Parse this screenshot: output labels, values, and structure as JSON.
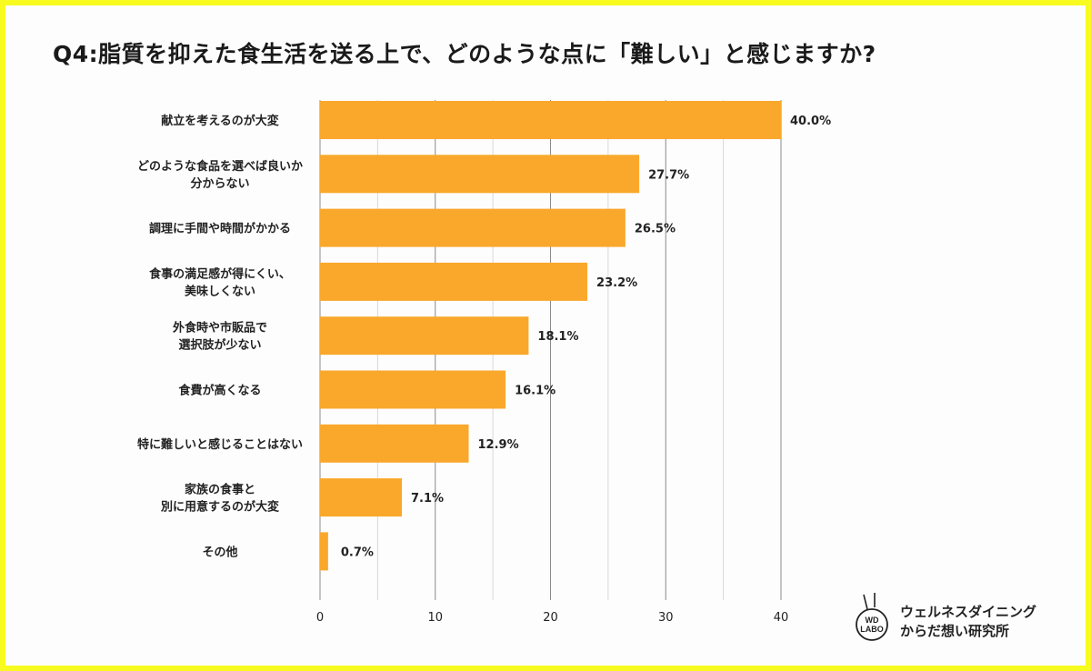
{
  "chart_data": {
    "type": "bar",
    "orientation": "horizontal",
    "title": "Q4:脂質を抑えた食生活を送る上で、どのような点に「難しい」と感じますか?",
    "categories": [
      [
        "献立を考えるのが大変"
      ],
      [
        "どのような食品を選べば良いか",
        "分からない"
      ],
      [
        "調理に手間や時間がかかる"
      ],
      [
        "食事の満足感が得にくい、",
        "美味しくない"
      ],
      [
        "外食時や市販品で",
        "選択肢が少ない"
      ],
      [
        "食費が高くなる"
      ],
      [
        "特に難しいと感じることはない"
      ],
      [
        "家族の食事と",
        "別に用意するのが大変"
      ],
      [
        "その他"
      ]
    ],
    "values": [
      40.0,
      27.7,
      26.5,
      23.2,
      18.1,
      16.1,
      12.9,
      7.1,
      0.7
    ],
    "data_labels": [
      "40.0%",
      "27.7%",
      "26.5%",
      "23.2%",
      "18.1%",
      "16.1%",
      "12.9%",
      "7.1%",
      "0.7%"
    ],
    "xlim": [
      0,
      40
    ],
    "xticks": [
      "0",
      "10",
      "20",
      "30",
      "40"
    ],
    "grid": true,
    "bar_color": "#f9a82c",
    "xlabel": "",
    "ylabel": ""
  },
  "logo": {
    "mark_text": [
      "WD",
      "LABO"
    ],
    "name_lines": [
      "ウェルネスダイニング",
      "からだ想い研究所"
    ]
  },
  "colors": {
    "frame": "#f7fb1f",
    "background": "#fefdfe",
    "bar": "#f9a82c"
  }
}
